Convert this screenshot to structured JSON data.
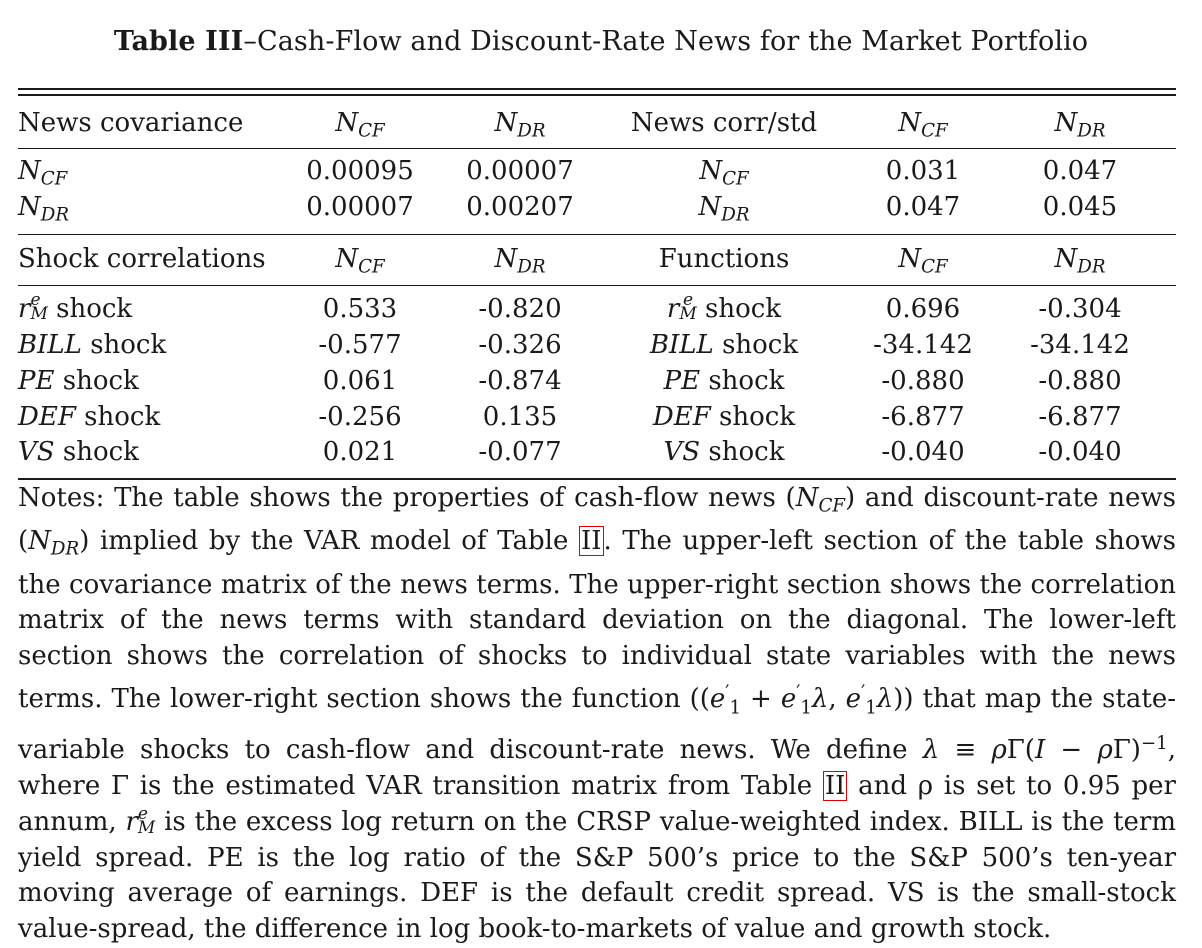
{
  "caption": {
    "label": "Table III",
    "text": "–Cash-Flow and Discount-Rate News for the Market Portfolio"
  },
  "header1": {
    "left_title": "News covariance",
    "right_title": "News corr/std"
  },
  "header2": {
    "left_title": "Shock correlations",
    "right_title": "Functions"
  },
  "shock_word": "shock",
  "top_rows": [
    {
      "var": "NCF",
      "cov": [
        "0.00095",
        "0.00007"
      ],
      "corr": [
        "0.031",
        "0.047"
      ]
    },
    {
      "var": "NDR",
      "cov": [
        "0.00007",
        "0.00207"
      ],
      "corr": [
        "0.047",
        "0.045"
      ]
    }
  ],
  "bottom_rows": [
    {
      "var": "r^e_M",
      "corr": [
        "0.533",
        "-0.820"
      ],
      "func": [
        "0.696",
        "-0.304"
      ]
    },
    {
      "var": "BILL",
      "corr": [
        "-0.577",
        "-0.326"
      ],
      "func": [
        "-34.142",
        "-34.142"
      ]
    },
    {
      "var": "PE",
      "corr": [
        "0.061",
        "-0.874"
      ],
      "func": [
        "-0.880",
        "-0.880"
      ]
    },
    {
      "var": "DEF",
      "corr": [
        "-0.256",
        "0.135"
      ],
      "func": [
        "-6.877",
        "-6.877"
      ]
    },
    {
      "var": "VS",
      "corr": [
        "0.021",
        "-0.077"
      ],
      "func": [
        "-0.040",
        "-0.040"
      ]
    }
  ],
  "notes": {
    "p1": "Notes:  The table shows the properties of cash-flow news (",
    "p2": ") and discount-rate news (",
    "p3": ") implied by the VAR model of Table ",
    "ref": "II",
    "p4": ". The upper-left section of the table shows the covariance matrix of the news terms. The upper-right section shows the correlation matrix of the news terms with standard deviation on the diagonal.  The lower-left section shows the correlation of shocks to individual state variables with the news terms. The lower-right section shows the function (",
    "p5": ") that map the state-variable shocks to cash-flow and discount-rate news. We define ",
    "p6": ", where Γ is the estimated VAR transition matrix from Table ",
    "p7": " and ρ is set to 0.95 per annum, ",
    "p8": " is the excess log return on the CRSP value-weighted index. BILL is the term yield spread. PE is the log ratio of the S&P 500’s price to the S&P 500’s ten-year moving average of earnings. DEF is the default credit spread.  VS is the small-stock value-spread, the difference in log book-to-markets of value and growth stock."
  }
}
